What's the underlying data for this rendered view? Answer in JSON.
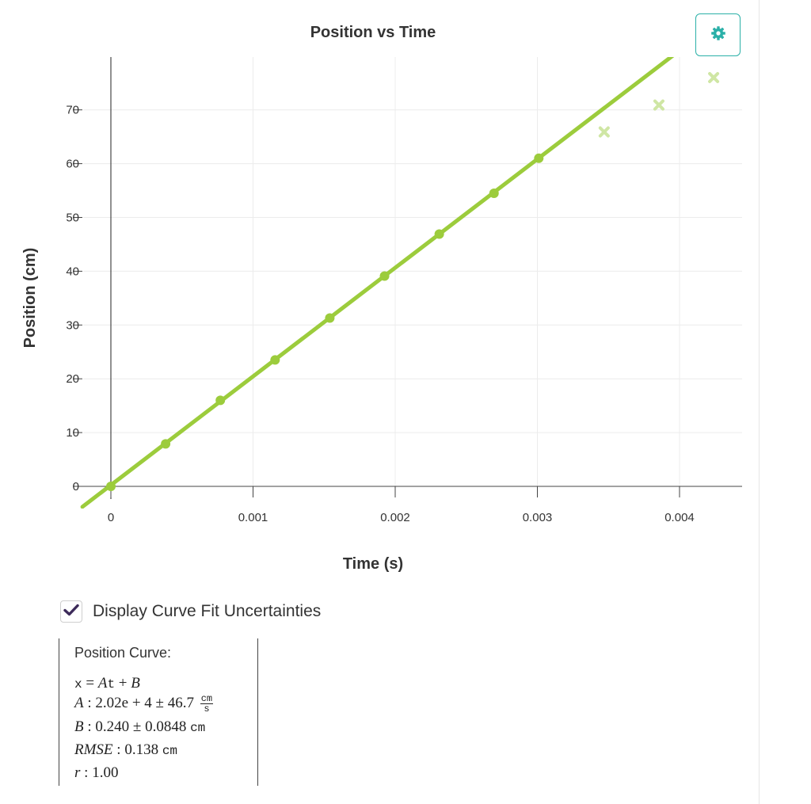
{
  "chart_data": {
    "type": "scatter",
    "title": "Position vs Time",
    "xlabel": "Time (s)",
    "ylabel": "Position (cm)",
    "xlim": [
      -0.0001,
      0.00443
    ],
    "ylim": [
      -3,
      80
    ],
    "x_ticks": [
      "0",
      "0.001",
      "0.002",
      "0.003",
      "0.004"
    ],
    "x_tick_values": [
      0,
      0.001,
      0.002,
      0.003,
      0.004
    ],
    "y_ticks": [
      "0",
      "10",
      "20",
      "30",
      "40",
      "50",
      "60",
      "70"
    ],
    "y_tick_values": [
      0,
      10,
      20,
      30,
      40,
      50,
      60,
      70
    ],
    "grid": true,
    "series": [
      {
        "role": "included",
        "marker": "circle",
        "color": "#9ccc3c",
        "x": [
          0,
          0.000385,
          0.00077,
          0.001155,
          0.00154,
          0.001925,
          0.00231,
          0.002695,
          0.00301
        ],
        "y": [
          0,
          7.9,
          16.0,
          23.5,
          31.3,
          39.1,
          46.9,
          54.5,
          61.0
        ]
      },
      {
        "role": "excluded",
        "marker": "x",
        "color": "#cfe6a4",
        "x": [
          0.00347,
          0.003855,
          0.00424
        ],
        "y": [
          65.9,
          70.9,
          76.0
        ]
      }
    ],
    "fit": {
      "model": "linear",
      "slope": 20200,
      "intercept": 0.24,
      "color": "#9ccc3c"
    }
  },
  "settings_button": {
    "icon": "gear-icon",
    "color": "#2bb0a8"
  },
  "uncertainty_toggle": {
    "label": "Display Curve Fit Uncertainties",
    "checked": true,
    "check_color": "#3d2b5a"
  },
  "fit_panel": {
    "title": "Position Curve:",
    "equation": {
      "lhs": "x",
      "rhs_a": "A",
      "rhs_t": "t",
      "rhs_b": "B"
    },
    "A": {
      "name": "A",
      "value": "2.02e + 4",
      "uncertainty": "46.7",
      "unit_num": "cm",
      "unit_den": "s"
    },
    "B": {
      "name": "B",
      "value": "0.240",
      "uncertainty": "0.0848",
      "unit": "cm"
    },
    "RMSE": {
      "name": "RMSE",
      "value": "0.138",
      "unit": "cm"
    },
    "r": {
      "name": "r",
      "value": "1.00"
    }
  }
}
